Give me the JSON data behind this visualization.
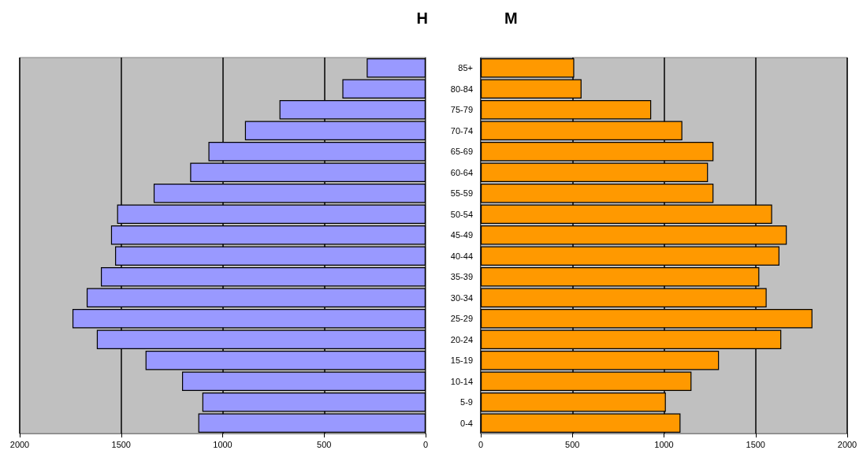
{
  "chart_data": [
    {
      "type": "bar",
      "orientation": "horizontal",
      "title": "H",
      "categories": [
        null,
        null,
        null,
        null,
        null,
        null,
        null,
        null,
        null,
        null,
        null,
        null,
        null,
        null,
        null,
        null,
        null,
        null
      ],
      "values": [
        290,
        410,
        720,
        890,
        1070,
        1160,
        1340,
        1520,
        1550,
        1530,
        1600,
        1670,
        1740,
        1620,
        1380,
        1200,
        1100,
        1120
      ],
      "color": "#9999ff",
      "xlim": [
        2000,
        0
      ],
      "xticks": [
        0,
        500,
        1000,
        1500,
        2000
      ],
      "grid": "x",
      "tick_labels": "x"
    },
    {
      "type": "bar",
      "orientation": "horizontal",
      "title": "M",
      "categories": [
        "85+",
        "80-84",
        "75-79",
        "70-74",
        "65-69",
        "60-64",
        "55-59",
        "50-54",
        "45-49",
        "40-44",
        "35-39",
        "30-34",
        "25-29",
        "20-24",
        "15-19",
        "10-14",
        "5-9",
        "0-4"
      ],
      "values": [
        510,
        550,
        930,
        1100,
        1270,
        1240,
        1270,
        1590,
        1670,
        1630,
        1520,
        1560,
        1810,
        1640,
        1300,
        1150,
        1010,
        1090
      ],
      "color": "#ff9900",
      "xlim": [
        0,
        2000
      ],
      "xticks": [
        0,
        500,
        1000,
        1500,
        2000
      ],
      "grid": "x"
    }
  ]
}
